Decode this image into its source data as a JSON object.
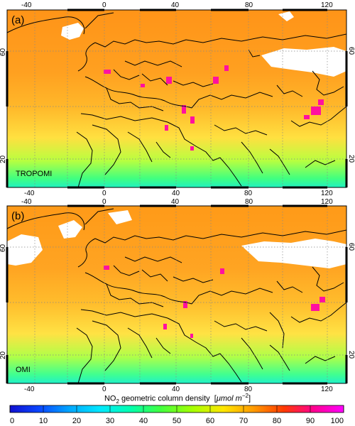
{
  "panels": [
    {
      "letter": "(a)",
      "instrument": "TROPOMI",
      "lon_labels": [
        "-40",
        "0",
        "40",
        "80",
        "120"
      ],
      "lat_labels": [
        "20",
        "60"
      ]
    },
    {
      "letter": "(b)",
      "instrument": "OMI",
      "lon_labels": [
        "-40",
        "0",
        "40",
        "80",
        "120"
      ],
      "lat_labels": [
        "20",
        "60"
      ]
    }
  ],
  "colorbar": {
    "title_prefix": "NO",
    "title_sub": "2",
    "title_main": " geometric column density  [",
    "title_unit": "μmol m",
    "title_exp": "−2",
    "title_close": "]",
    "ticks": [
      "0",
      "10",
      "20",
      "30",
      "40",
      "50",
      "60",
      "70",
      "80",
      "90",
      "100"
    ],
    "range": [
      0,
      100
    ],
    "stops": [
      "#1010d0",
      "#0a48ff",
      "#00a8ff",
      "#00e8ff",
      "#00ffb0",
      "#40ff40",
      "#a8ff00",
      "#ffe600",
      "#ff9a00",
      "#ff3a00",
      "#ff0090",
      "#ff00ff"
    ]
  },
  "colors": {
    "land_high": "#ff9a1a",
    "land_mid": "#ffc020",
    "south": "#80ff60",
    "ocean_low": "#20e8c0",
    "hotspot": "#ff10a0",
    "nodata": "#ffffff"
  }
}
